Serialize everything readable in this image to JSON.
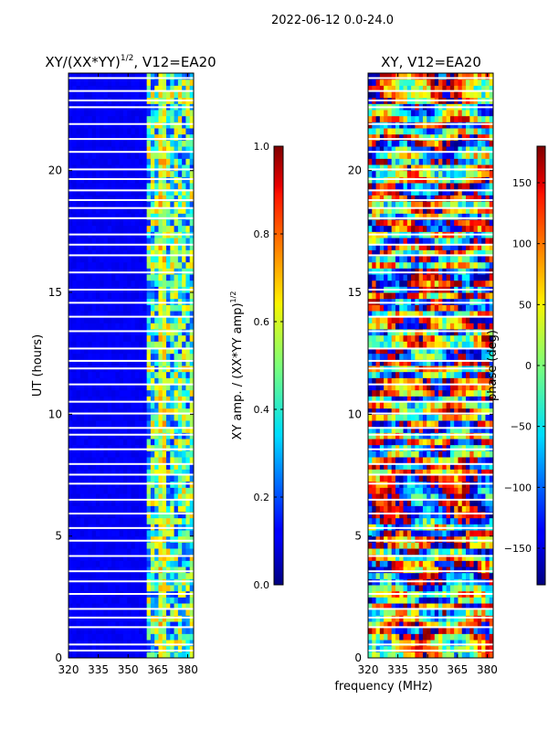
{
  "suptitle": "2022-06-12 0.0-24.0",
  "shared_xlabel": "frequency (MHz)",
  "colors": {
    "axis": "#000000",
    "gap": "#ffffff"
  },
  "chart_data": [
    {
      "type": "heatmap",
      "title_main": "XY/(XX*YY)",
      "title_sup": "1/2",
      "title_tail": ", V12=EA20",
      "ylabel": "UT (hours)",
      "xlim": [
        320,
        383
      ],
      "ylim": [
        0,
        24
      ],
      "xticks": [
        320,
        335,
        350,
        365,
        380
      ],
      "yticks": [
        0,
        5,
        10,
        15,
        20
      ],
      "colorbar": {
        "label_main": "XY amp. / (XX*YY amp)",
        "label_sup": "1/2",
        "range": [
          0,
          1
        ],
        "ticks": [
          "0.0",
          "0.2",
          "0.4",
          "0.6",
          "0.8",
          "1.0"
        ],
        "tick_values": [
          0,
          0.2,
          0.4,
          0.6,
          0.8,
          1.0
        ]
      },
      "active_band_mhz": [
        360,
        383
      ]
    },
    {
      "type": "heatmap",
      "title_main": "XY, V12=EA20",
      "title_sup": "",
      "title_tail": "",
      "ylabel": "",
      "xlim": [
        320,
        383
      ],
      "ylim": [
        0,
        24
      ],
      "xticks": [
        320,
        335,
        350,
        365,
        380
      ],
      "yticks": [
        0,
        5,
        10,
        15,
        20
      ],
      "colorbar": {
        "label_main": "phase (deg)",
        "label_sup": "",
        "range": [
          -180,
          180
        ],
        "ticks": [
          "−150",
          "−100",
          "−50",
          "0",
          "50",
          "100",
          "150"
        ],
        "tick_values": [
          -150,
          -100,
          -50,
          0,
          50,
          100,
          150
        ]
      }
    }
  ]
}
